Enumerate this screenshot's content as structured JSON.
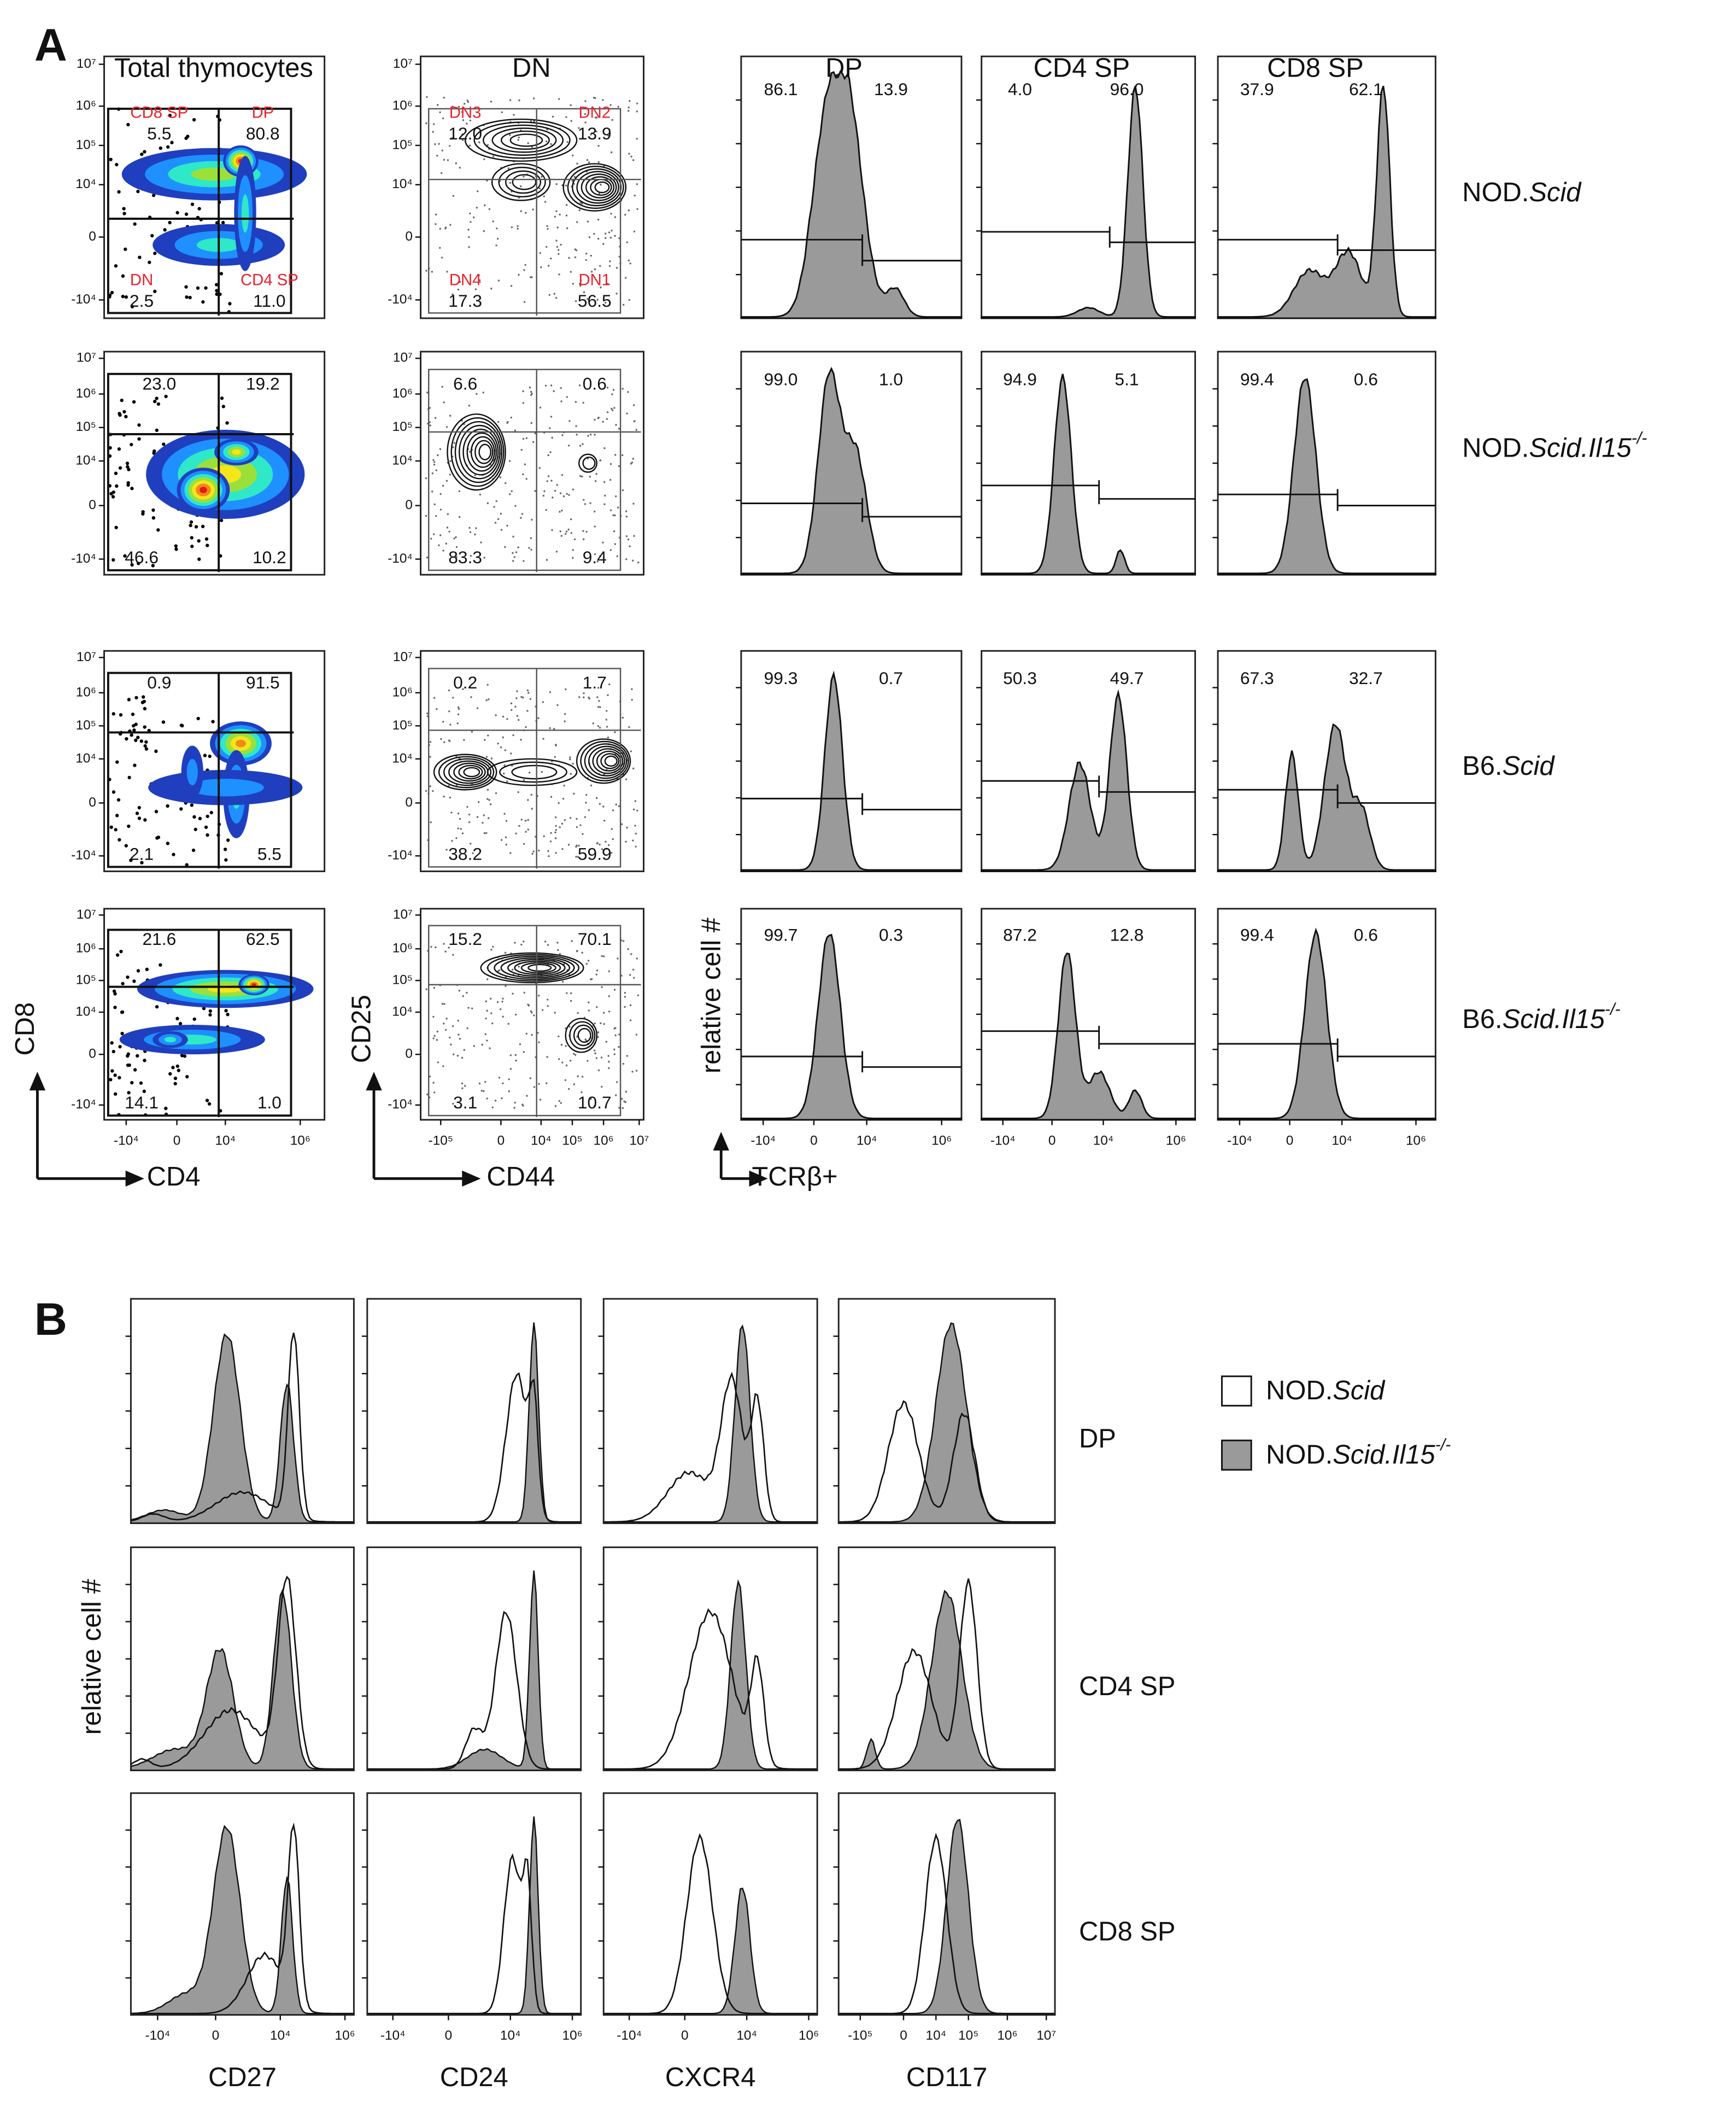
{
  "panel_a": {
    "label": "A",
    "columns": [
      "Total thymocytes",
      "DN",
      "DP",
      "CD4 SP",
      "CD8 SP"
    ],
    "gate_labels": {
      "total": [
        "CD8 SP",
        "DP",
        "DN",
        "CD4 SP"
      ],
      "dn": [
        "DN3",
        "DN2",
        "DN4",
        "DN1"
      ]
    },
    "rows": [
      {
        "sample": [
          {
            "text": "NOD."
          },
          {
            "text": "Scid",
            "italic": true
          }
        ],
        "total": [
          "5.5",
          "80.8",
          "2.5",
          "11.0"
        ],
        "dn": [
          "12.0",
          "13.9",
          "17.3",
          "56.5"
        ],
        "dp": [
          "86.1",
          "13.9"
        ],
        "cd4_sp": [
          "4.0",
          "96.0"
        ],
        "cd8_sp": [
          "37.9",
          "62.1"
        ]
      },
      {
        "sample": [
          {
            "text": "NOD."
          },
          {
            "text": "Scid.Il15",
            "italic": true
          },
          {
            "text": "-/-",
            "italic": true,
            "sup": true
          }
        ],
        "total": [
          "23.0",
          "19.2",
          "46.6",
          "10.2"
        ],
        "dn": [
          "6.6",
          "0.6",
          "83.3",
          "9.4"
        ],
        "dp": [
          "99.0",
          "1.0"
        ],
        "cd4_sp": [
          "94.9",
          "5.1"
        ],
        "cd8_sp": [
          "99.4",
          "0.6"
        ]
      },
      {
        "sample": [
          {
            "text": "B6."
          },
          {
            "text": "Scid",
            "italic": true
          }
        ],
        "total": [
          "0.9",
          "91.5",
          "2.1",
          "5.5"
        ],
        "dn": [
          "0.2",
          "1.7",
          "38.2",
          "59.9"
        ],
        "dp": [
          "99.3",
          "0.7"
        ],
        "cd4_sp": [
          "50.3",
          "49.7"
        ],
        "cd8_sp": [
          "67.3",
          "32.7"
        ]
      },
      {
        "sample": [
          {
            "text": "B6."
          },
          {
            "text": "Scid.Il15",
            "italic": true
          },
          {
            "text": "-/-",
            "italic": true,
            "sup": true
          }
        ],
        "total": [
          "21.6",
          "62.5",
          "14.1",
          "1.0"
        ],
        "dn": [
          "15.2",
          "70.1",
          "3.1",
          "10.7"
        ],
        "dp": [
          "99.7",
          "0.3"
        ],
        "cd4_sp": [
          "87.2",
          "12.8"
        ],
        "cd8_sp": [
          "99.4",
          "0.6"
        ]
      }
    ],
    "y_ticks": [
      "10⁷",
      "10⁶",
      "10⁵",
      "10⁴",
      "0",
      "-10⁴"
    ],
    "x_ticks": {
      "total": [
        "-10⁴",
        "0",
        "10⁴",
        "10⁶"
      ],
      "dn": [
        "-10⁵",
        "0",
        "10⁴",
        "10⁵",
        "10⁶",
        "10⁷"
      ],
      "histogram": [
        "-10⁴",
        "0",
        "10⁴",
        "10⁶"
      ]
    },
    "axis_titles": {
      "cd8": "CD8",
      "cd4": "CD4",
      "cd25": "CD25",
      "cd44": "CD44",
      "count": "relative cell #",
      "tcr": "TCRβ+"
    }
  },
  "panel_b": {
    "label": "B",
    "columns": [
      "CD27",
      "CD24",
      "CXCR4",
      "CD117"
    ],
    "rows": [
      "DP",
      "CD4 SP",
      "CD8 SP"
    ],
    "y_title": "relative cell #",
    "x_ticks": [
      [
        "-10⁴",
        "0",
        "10⁴",
        "10⁶"
      ],
      [
        "-10⁴",
        "0",
        "10⁴",
        "10⁶"
      ],
      [
        "-10⁴",
        "0",
        "10⁴",
        "10⁶"
      ],
      [
        "-10⁵",
        "0",
        "10⁴",
        "10⁵",
        "10⁶",
        "10⁷"
      ]
    ],
    "legend": [
      [
        {
          "text": "NOD."
        },
        {
          "text": "Scid",
          "italic": true
        }
      ],
      [
        {
          "text": "NOD."
        },
        {
          "text": "Scid.Il15",
          "italic": true
        },
        {
          "text": "-/-",
          "italic": true,
          "sup": true
        }
      ]
    ]
  }
}
